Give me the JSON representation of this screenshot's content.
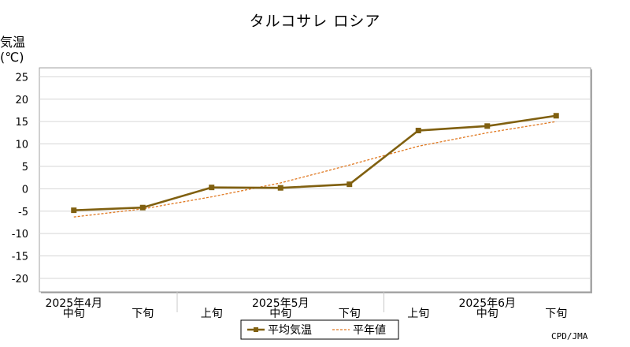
{
  "chart_data": {
    "type": "line",
    "title": "タルコサレ ロシア",
    "ylabel": "気温",
    "yunit": "(℃)",
    "ylim": [
      -23,
      27
    ],
    "yticks": [
      25,
      20,
      15,
      10,
      5,
      0,
      -5,
      -10,
      -15,
      -20
    ],
    "grid": true,
    "categories": [
      "中旬",
      "下旬",
      "上旬",
      "中旬",
      "下旬",
      "上旬",
      "中旬",
      "下旬"
    ],
    "month_labels": [
      {
        "label": "2025年4月",
        "index": 0
      },
      {
        "label": "2025年5月",
        "index": 3
      },
      {
        "label": "2025年6月",
        "index": 6
      }
    ],
    "series": [
      {
        "name": "平均気温",
        "values": [
          -4.8,
          -4.2,
          0.3,
          0.2,
          1.0,
          13.0,
          14.0,
          16.3
        ],
        "color": "#806010",
        "style": "solid-marker"
      },
      {
        "name": "平年値",
        "values": [
          -6.3,
          -4.5,
          -1.8,
          1.3,
          5.3,
          9.5,
          12.5,
          15.0
        ],
        "color": "#e07820",
        "style": "dashed"
      }
    ],
    "legend_position": "bottom-center"
  },
  "credit": "CPD/JMA"
}
